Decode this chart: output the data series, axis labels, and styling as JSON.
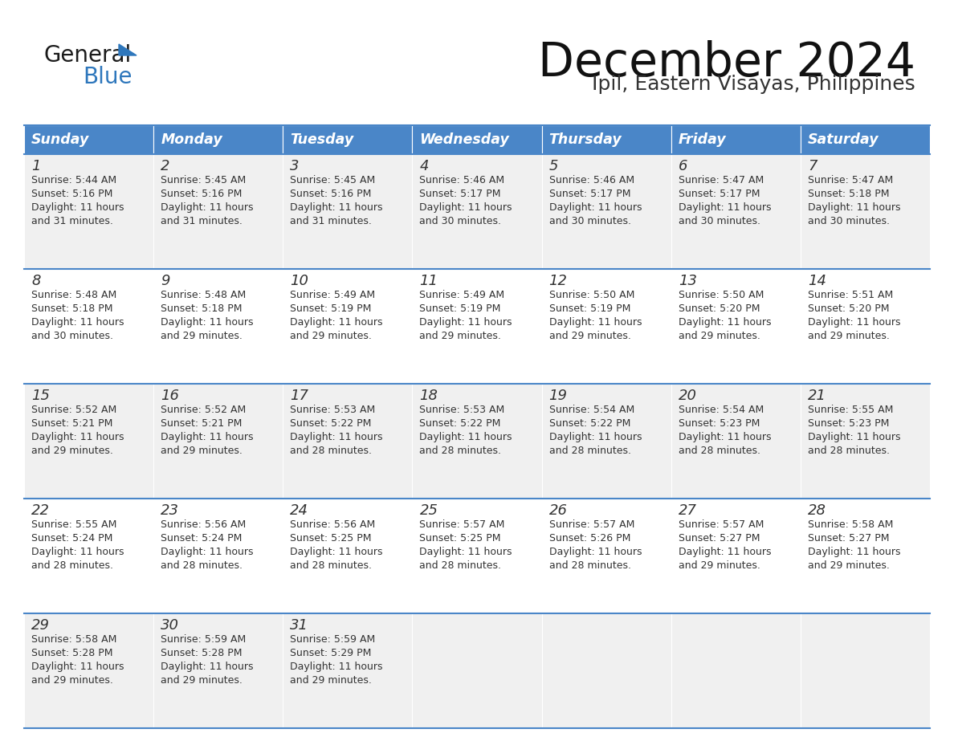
{
  "title": "December 2024",
  "subtitle": "Ipil, Eastern Visayas, Philippines",
  "header_color": "#4a86c8",
  "header_text_color": "#ffffff",
  "cell_bg_even": "#f0f0f0",
  "cell_bg_odd": "#ffffff",
  "border_color": "#4a86c8",
  "text_color": "#333333",
  "day_headers": [
    "Sunday",
    "Monday",
    "Tuesday",
    "Wednesday",
    "Thursday",
    "Friday",
    "Saturday"
  ],
  "calendar_data": [
    [
      {
        "day": 1,
        "sunrise": "5:44 AM",
        "sunset": "5:16 PM",
        "daylight_minutes": "31"
      },
      {
        "day": 2,
        "sunrise": "5:45 AM",
        "sunset": "5:16 PM",
        "daylight_minutes": "31"
      },
      {
        "day": 3,
        "sunrise": "5:45 AM",
        "sunset": "5:16 PM",
        "daylight_minutes": "31"
      },
      {
        "day": 4,
        "sunrise": "5:46 AM",
        "sunset": "5:17 PM",
        "daylight_minutes": "30"
      },
      {
        "day": 5,
        "sunrise": "5:46 AM",
        "sunset": "5:17 PM",
        "daylight_minutes": "30"
      },
      {
        "day": 6,
        "sunrise": "5:47 AM",
        "sunset": "5:17 PM",
        "daylight_minutes": "30"
      },
      {
        "day": 7,
        "sunrise": "5:47 AM",
        "sunset": "5:18 PM",
        "daylight_minutes": "30"
      }
    ],
    [
      {
        "day": 8,
        "sunrise": "5:48 AM",
        "sunset": "5:18 PM",
        "daylight_minutes": "30"
      },
      {
        "day": 9,
        "sunrise": "5:48 AM",
        "sunset": "5:18 PM",
        "daylight_minutes": "29"
      },
      {
        "day": 10,
        "sunrise": "5:49 AM",
        "sunset": "5:19 PM",
        "daylight_minutes": "29"
      },
      {
        "day": 11,
        "sunrise": "5:49 AM",
        "sunset": "5:19 PM",
        "daylight_minutes": "29"
      },
      {
        "day": 12,
        "sunrise": "5:50 AM",
        "sunset": "5:19 PM",
        "daylight_minutes": "29"
      },
      {
        "day": 13,
        "sunrise": "5:50 AM",
        "sunset": "5:20 PM",
        "daylight_minutes": "29"
      },
      {
        "day": 14,
        "sunrise": "5:51 AM",
        "sunset": "5:20 PM",
        "daylight_minutes": "29"
      }
    ],
    [
      {
        "day": 15,
        "sunrise": "5:52 AM",
        "sunset": "5:21 PM",
        "daylight_minutes": "29"
      },
      {
        "day": 16,
        "sunrise": "5:52 AM",
        "sunset": "5:21 PM",
        "daylight_minutes": "29"
      },
      {
        "day": 17,
        "sunrise": "5:53 AM",
        "sunset": "5:22 PM",
        "daylight_minutes": "28"
      },
      {
        "day": 18,
        "sunrise": "5:53 AM",
        "sunset": "5:22 PM",
        "daylight_minutes": "28"
      },
      {
        "day": 19,
        "sunrise": "5:54 AM",
        "sunset": "5:22 PM",
        "daylight_minutes": "28"
      },
      {
        "day": 20,
        "sunrise": "5:54 AM",
        "sunset": "5:23 PM",
        "daylight_minutes": "28"
      },
      {
        "day": 21,
        "sunrise": "5:55 AM",
        "sunset": "5:23 PM",
        "daylight_minutes": "28"
      }
    ],
    [
      {
        "day": 22,
        "sunrise": "5:55 AM",
        "sunset": "5:24 PM",
        "daylight_minutes": "28"
      },
      {
        "day": 23,
        "sunrise": "5:56 AM",
        "sunset": "5:24 PM",
        "daylight_minutes": "28"
      },
      {
        "day": 24,
        "sunrise": "5:56 AM",
        "sunset": "5:25 PM",
        "daylight_minutes": "28"
      },
      {
        "day": 25,
        "sunrise": "5:57 AM",
        "sunset": "5:25 PM",
        "daylight_minutes": "28"
      },
      {
        "day": 26,
        "sunrise": "5:57 AM",
        "sunset": "5:26 PM",
        "daylight_minutes": "28"
      },
      {
        "day": 27,
        "sunrise": "5:57 AM",
        "sunset": "5:27 PM",
        "daylight_minutes": "29"
      },
      {
        "day": 28,
        "sunrise": "5:58 AM",
        "sunset": "5:27 PM",
        "daylight_minutes": "29"
      }
    ],
    [
      {
        "day": 29,
        "sunrise": "5:58 AM",
        "sunset": "5:28 PM",
        "daylight_minutes": "29"
      },
      {
        "day": 30,
        "sunrise": "5:59 AM",
        "sunset": "5:28 PM",
        "daylight_minutes": "29"
      },
      {
        "day": 31,
        "sunrise": "5:59 AM",
        "sunset": "5:29 PM",
        "daylight_minutes": "29"
      },
      null,
      null,
      null,
      null
    ]
  ]
}
